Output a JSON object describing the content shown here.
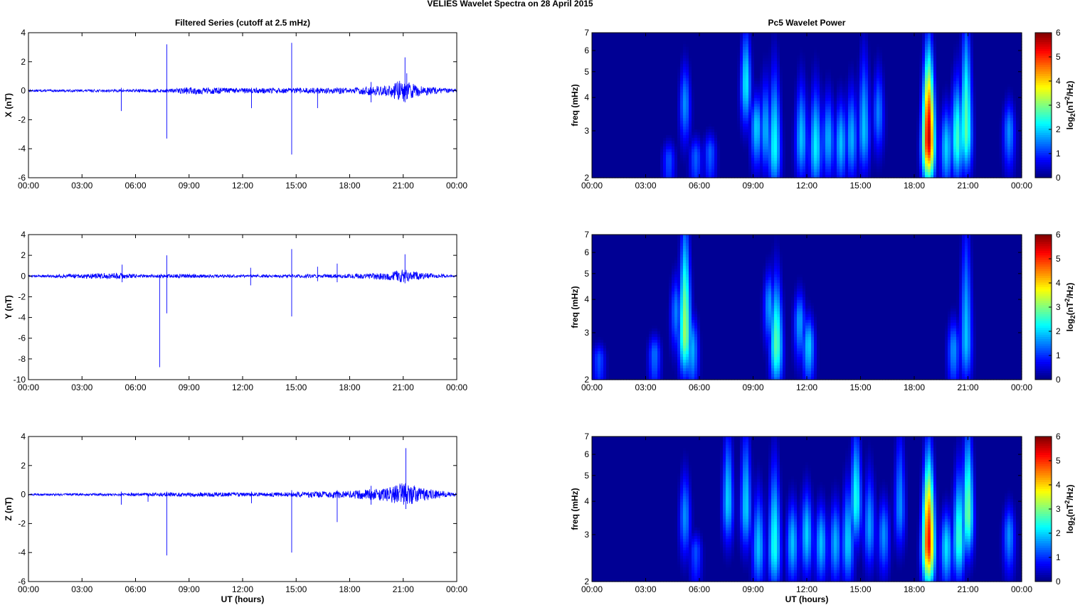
{
  "figure": {
    "title": "VELIES Wavelet Spectra on 28 April     2015",
    "left_column_title": "Filtered Series (cutoff at 2.5 mHz)",
    "right_column_title": "Pc5 Wavelet Power"
  },
  "colors": {
    "series_line": "#0000ff",
    "axes": "#000000",
    "background": "#ffffff",
    "colormap": "jet"
  },
  "chart_data": [
    {
      "type": "line",
      "name": "x-series",
      "title": "Filtered Series (cutoff at 2.5 mHz)",
      "xlabel": "",
      "ylabel": "X (nT)",
      "xlim": [
        "00:00",
        "00:00"
      ],
      "x_ticks": [
        "00:00",
        "03:00",
        "06:00",
        "09:00",
        "12:00",
        "15:00",
        "18:00",
        "21:00",
        "00:00"
      ],
      "ylim": [
        -6,
        4
      ],
      "y_ticks": [
        4,
        2,
        0,
        -2,
        -4,
        -6
      ],
      "noise_amplitude": [
        {
          "hour": 0,
          "nT": 0.06
        },
        {
          "hour": 5,
          "nT": 0.07
        },
        {
          "hour": 8,
          "nT": 0.1
        },
        {
          "hour": 9,
          "nT": 0.2
        },
        {
          "hour": 12,
          "nT": 0.14
        },
        {
          "hour": 18,
          "nT": 0.16
        },
        {
          "hour": 20,
          "nT": 0.3
        },
        {
          "hour": 21,
          "nT": 0.6
        },
        {
          "hour": 22,
          "nT": 0.25
        },
        {
          "hour": 24,
          "nT": 0.08
        }
      ],
      "spikes": [
        {
          "hour": 5.2,
          "min": -1.4,
          "max": 0.2
        },
        {
          "hour": 7.75,
          "min": -3.3,
          "max": 3.2
        },
        {
          "hour": 12.5,
          "min": -1.2,
          "max": 0.2
        },
        {
          "hour": 14.75,
          "min": -4.4,
          "max": 3.3
        },
        {
          "hour": 16.2,
          "min": -1.2,
          "max": 0.2
        },
        {
          "hour": 19.2,
          "min": -0.8,
          "max": 0.6
        },
        {
          "hour": 21.1,
          "min": -0.8,
          "max": 2.3
        },
        {
          "hour": 21.2,
          "min": -0.6,
          "max": 1.2
        }
      ]
    },
    {
      "type": "line",
      "name": "y-series",
      "xlabel": "",
      "ylabel": "Y (nT)",
      "xlim": [
        "00:00",
        "00:00"
      ],
      "x_ticks": [
        "00:00",
        "03:00",
        "06:00",
        "09:00",
        "12:00",
        "15:00",
        "18:00",
        "21:00",
        "00:00"
      ],
      "ylim": [
        -10,
        4
      ],
      "y_ticks": [
        4,
        2,
        0,
        -2,
        -4,
        -6,
        -8,
        -10
      ],
      "noise_amplitude": [
        {
          "hour": 0,
          "nT": 0.06
        },
        {
          "hour": 5,
          "nT": 0.25
        },
        {
          "hour": 6,
          "nT": 0.12
        },
        {
          "hour": 9,
          "nT": 0.15
        },
        {
          "hour": 12,
          "nT": 0.1
        },
        {
          "hour": 18,
          "nT": 0.15
        },
        {
          "hour": 20,
          "nT": 0.3
        },
        {
          "hour": 21,
          "nT": 0.5
        },
        {
          "hour": 22,
          "nT": 0.25
        },
        {
          "hour": 24,
          "nT": 0.06
        }
      ],
      "spikes": [
        {
          "hour": 5.25,
          "min": -0.6,
          "max": 1.1
        },
        {
          "hour": 7.35,
          "min": -8.8,
          "max": 0.1
        },
        {
          "hour": 7.75,
          "min": -3.6,
          "max": 2.0
        },
        {
          "hour": 12.45,
          "min": -0.9,
          "max": 0.8
        },
        {
          "hour": 14.75,
          "min": -3.9,
          "max": 2.6
        },
        {
          "hour": 16.2,
          "min": -0.5,
          "max": 0.9
        },
        {
          "hour": 17.3,
          "min": -0.6,
          "max": 1.2
        },
        {
          "hour": 21.1,
          "min": -0.7,
          "max": 2.1
        }
      ]
    },
    {
      "type": "line",
      "name": "z-series",
      "xlabel": "UT (hours)",
      "ylabel": "Z (nT)",
      "xlim": [
        "00:00",
        "00:00"
      ],
      "x_ticks": [
        "00:00",
        "03:00",
        "06:00",
        "09:00",
        "12:00",
        "15:00",
        "18:00",
        "21:00",
        "00:00"
      ],
      "ylim": [
        -6,
        4
      ],
      "y_ticks": [
        4,
        2,
        0,
        -2,
        -4,
        -6
      ],
      "noise_amplitude": [
        {
          "hour": 0,
          "nT": 0.05
        },
        {
          "hour": 5,
          "nT": 0.07
        },
        {
          "hour": 9,
          "nT": 0.12
        },
        {
          "hour": 13,
          "nT": 0.1
        },
        {
          "hour": 18,
          "nT": 0.2
        },
        {
          "hour": 20,
          "nT": 0.35
        },
        {
          "hour": 21,
          "nT": 0.65
        },
        {
          "hour": 22,
          "nT": 0.35
        },
        {
          "hour": 24,
          "nT": 0.08
        }
      ],
      "spikes": [
        {
          "hour": 5.2,
          "min": -0.7,
          "max": 0.2
        },
        {
          "hour": 6.7,
          "min": -0.5,
          "max": 0.1
        },
        {
          "hour": 7.75,
          "min": -4.2,
          "max": 0.2
        },
        {
          "hour": 12.5,
          "min": -0.6,
          "max": 0.2
        },
        {
          "hour": 14.75,
          "min": -4.0,
          "max": 0.3
        },
        {
          "hour": 17.3,
          "min": -1.9,
          "max": 0.3
        },
        {
          "hour": 19.2,
          "min": -0.7,
          "max": 0.6
        },
        {
          "hour": 21.15,
          "min": -1.0,
          "max": 3.2
        }
      ]
    },
    {
      "type": "heatmap",
      "name": "x-wavelet",
      "title": "Pc5 Wavelet Power",
      "xlabel": "",
      "ylabel": "freq (mHz)",
      "x_ticks": [
        "00:00",
        "03:00",
        "06:00",
        "09:00",
        "12:00",
        "15:00",
        "18:00",
        "21:00",
        "00:00"
      ],
      "ylim_mHz": [
        2,
        7
      ],
      "y_scale": "log",
      "y_ticks": [
        2,
        3,
        4,
        5,
        6,
        7
      ],
      "colorbar": {
        "label": "log₂(nT²/Hz)",
        "label_main": "log",
        "label_sub": "2",
        "label_paren_open": "(nT",
        "label_sup": "2",
        "label_paren_close": "/Hz)",
        "range": [
          0,
          6
        ],
        "ticks": [
          0,
          1,
          2,
          3,
          4,
          5,
          6
        ]
      },
      "blobs": [
        {
          "hour": 4.3,
          "f_center_mHz": 2.35,
          "f_top_mHz": 2.7,
          "peak": 1.2
        },
        {
          "hour": 5.2,
          "f_center_mHz": 3.8,
          "f_top_mHz": 5.2,
          "peak": 1.6
        },
        {
          "hour": 5.8,
          "f_center_mHz": 2.4,
          "f_top_mHz": 2.8,
          "peak": 1.3
        },
        {
          "hour": 6.6,
          "f_center_mHz": 2.5,
          "f_top_mHz": 2.9,
          "peak": 1.3
        },
        {
          "hour": 8.6,
          "f_center_mHz": 4.5,
          "f_top_mHz": 7.0,
          "peak": 2.2
        },
        {
          "hour": 9.2,
          "f_center_mHz": 3.1,
          "f_top_mHz": 4.0,
          "peak": 2.0
        },
        {
          "hour": 9.7,
          "f_center_mHz": 3.0,
          "f_top_mHz": 4.5,
          "peak": 1.8
        },
        {
          "hour": 10.2,
          "f_center_mHz": 2.6,
          "f_top_mHz": 4.8,
          "peak": 2.3
        },
        {
          "hour": 11.7,
          "f_center_mHz": 2.8,
          "f_top_mHz": 4.4,
          "peak": 1.9
        },
        {
          "hour": 12.5,
          "f_center_mHz": 2.6,
          "f_top_mHz": 4.2,
          "peak": 2.2
        },
        {
          "hour": 13.2,
          "f_center_mHz": 2.8,
          "f_top_mHz": 4.0,
          "peak": 1.8
        },
        {
          "hour": 13.9,
          "f_center_mHz": 2.7,
          "f_top_mHz": 3.8,
          "peak": 1.9
        },
        {
          "hour": 14.5,
          "f_center_mHz": 2.8,
          "f_top_mHz": 4.2,
          "peak": 1.8
        },
        {
          "hour": 15.2,
          "f_center_mHz": 3.0,
          "f_top_mHz": 5.5,
          "peak": 1.9
        },
        {
          "hour": 16.0,
          "f_center_mHz": 3.5,
          "f_top_mHz": 5.0,
          "peak": 1.5
        },
        {
          "hour": 18.8,
          "f_center_mHz": 2.8,
          "f_top_mHz": 5.5,
          "peak": 5.6
        },
        {
          "hour": 19.8,
          "f_center_mHz": 2.6,
          "f_top_mHz": 3.6,
          "peak": 2.0
        },
        {
          "hour": 20.4,
          "f_center_mHz": 2.8,
          "f_top_mHz": 4.5,
          "peak": 2.6
        },
        {
          "hour": 20.9,
          "f_center_mHz": 3.0,
          "f_top_mHz": 7.0,
          "peak": 2.8
        },
        {
          "hour": 23.3,
          "f_center_mHz": 3.0,
          "f_top_mHz": 3.8,
          "peak": 1.6
        }
      ]
    },
    {
      "type": "heatmap",
      "name": "y-wavelet",
      "xlabel": "",
      "ylabel": "freq (mHz)",
      "x_ticks": [
        "00:00",
        "03:00",
        "06:00",
        "09:00",
        "12:00",
        "15:00",
        "18:00",
        "21:00",
        "00:00"
      ],
      "ylim_mHz": [
        2,
        7
      ],
      "y_scale": "log",
      "y_ticks": [
        2,
        3,
        4,
        5,
        6,
        7
      ],
      "colorbar": {
        "label": "log₂(nT²/Hz)",
        "label_main": "log",
        "label_sub": "2",
        "label_paren_open": "(nT",
        "label_sup": "2",
        "label_paren_close": "/Hz)",
        "range": [
          0,
          6
        ],
        "ticks": [
          0,
          1,
          2,
          3,
          4,
          5,
          6
        ]
      },
      "blobs": [
        {
          "hour": 0.4,
          "f_center_mHz": 2.4,
          "f_top_mHz": 2.7,
          "peak": 1.2
        },
        {
          "hour": 3.5,
          "f_center_mHz": 2.5,
          "f_top_mHz": 2.9,
          "peak": 1.4
        },
        {
          "hour": 4.7,
          "f_center_mHz": 3.6,
          "f_top_mHz": 4.8,
          "peak": 1.5
        },
        {
          "hour": 5.2,
          "f_center_mHz": 3.0,
          "f_top_mHz": 7.0,
          "peak": 3.2
        },
        {
          "hour": 5.6,
          "f_center_mHz": 2.6,
          "f_top_mHz": 3.4,
          "peak": 1.8
        },
        {
          "hour": 9.9,
          "f_center_mHz": 3.8,
          "f_top_mHz": 5.0,
          "peak": 1.7
        },
        {
          "hour": 10.3,
          "f_center_mHz": 2.7,
          "f_top_mHz": 4.6,
          "peak": 2.8
        },
        {
          "hour": 11.6,
          "f_center_mHz": 3.3,
          "f_top_mHz": 4.2,
          "peak": 1.7
        },
        {
          "hour": 12.1,
          "f_center_mHz": 2.7,
          "f_top_mHz": 3.4,
          "peak": 2.0
        },
        {
          "hour": 20.2,
          "f_center_mHz": 2.6,
          "f_top_mHz": 3.3,
          "peak": 1.6
        },
        {
          "hour": 20.9,
          "f_center_mHz": 2.8,
          "f_top_mHz": 7.0,
          "peak": 1.9
        }
      ]
    },
    {
      "type": "heatmap",
      "name": "z-wavelet",
      "xlabel": "UT (hours)",
      "ylabel": "freq (mHz)",
      "x_ticks": [
        "00:00",
        "03:00",
        "06:00",
        "09:00",
        "12:00",
        "15:00",
        "18:00",
        "21:00",
        "00:00"
      ],
      "ylim_mHz": [
        2,
        7
      ],
      "y_scale": "log",
      "y_ticks": [
        2,
        3,
        4,
        5,
        6,
        7
      ],
      "colorbar": {
        "label": "log₂(nT²/Hz)",
        "label_main": "log",
        "label_sub": "2",
        "label_paren_open": "(nT",
        "label_sup": "2",
        "label_paren_close": "/Hz)",
        "range": [
          0,
          6
        ],
        "ticks": [
          0,
          1,
          2,
          3,
          4,
          5,
          6
        ]
      },
      "blobs": [
        {
          "hour": 5.2,
          "f_center_mHz": 3.5,
          "f_top_mHz": 5.0,
          "peak": 1.6
        },
        {
          "hour": 5.8,
          "f_center_mHz": 2.6,
          "f_top_mHz": 3.0,
          "peak": 1.2
        },
        {
          "hour": 7.6,
          "f_center_mHz": 4.0,
          "f_top_mHz": 7.0,
          "peak": 2.0
        },
        {
          "hour": 8.6,
          "f_center_mHz": 3.8,
          "f_top_mHz": 7.0,
          "peak": 2.0
        },
        {
          "hour": 9.3,
          "f_center_mHz": 2.7,
          "f_top_mHz": 4.2,
          "peak": 1.9
        },
        {
          "hour": 10.2,
          "f_center_mHz": 2.7,
          "f_top_mHz": 5.2,
          "peak": 2.4
        },
        {
          "hour": 11.2,
          "f_center_mHz": 2.8,
          "f_top_mHz": 3.9,
          "peak": 1.9
        },
        {
          "hour": 12.0,
          "f_center_mHz": 3.0,
          "f_top_mHz": 4.3,
          "peak": 2.0
        },
        {
          "hour": 12.8,
          "f_center_mHz": 2.8,
          "f_top_mHz": 3.8,
          "peak": 1.9
        },
        {
          "hour": 13.6,
          "f_center_mHz": 2.8,
          "f_top_mHz": 3.9,
          "peak": 1.8
        },
        {
          "hour": 14.3,
          "f_center_mHz": 2.8,
          "f_top_mHz": 4.5,
          "peak": 2.0
        },
        {
          "hour": 14.75,
          "f_center_mHz": 4.0,
          "f_top_mHz": 7.0,
          "peak": 2.4
        },
        {
          "hour": 15.5,
          "f_center_mHz": 3.2,
          "f_top_mHz": 5.0,
          "peak": 1.7
        },
        {
          "hour": 16.3,
          "f_center_mHz": 3.0,
          "f_top_mHz": 4.0,
          "peak": 1.6
        },
        {
          "hour": 17.2,
          "f_center_mHz": 3.8,
          "f_top_mHz": 7.0,
          "peak": 1.6
        },
        {
          "hour": 18.8,
          "f_center_mHz": 2.8,
          "f_top_mHz": 5.5,
          "peak": 5.2
        },
        {
          "hour": 19.8,
          "f_center_mHz": 2.7,
          "f_top_mHz": 3.6,
          "peak": 2.1
        },
        {
          "hour": 20.5,
          "f_center_mHz": 2.9,
          "f_top_mHz": 5.0,
          "peak": 2.6
        },
        {
          "hour": 21.0,
          "f_center_mHz": 3.6,
          "f_top_mHz": 7.0,
          "peak": 2.9
        },
        {
          "hour": 23.3,
          "f_center_mHz": 3.0,
          "f_top_mHz": 3.8,
          "peak": 1.6
        }
      ]
    }
  ]
}
